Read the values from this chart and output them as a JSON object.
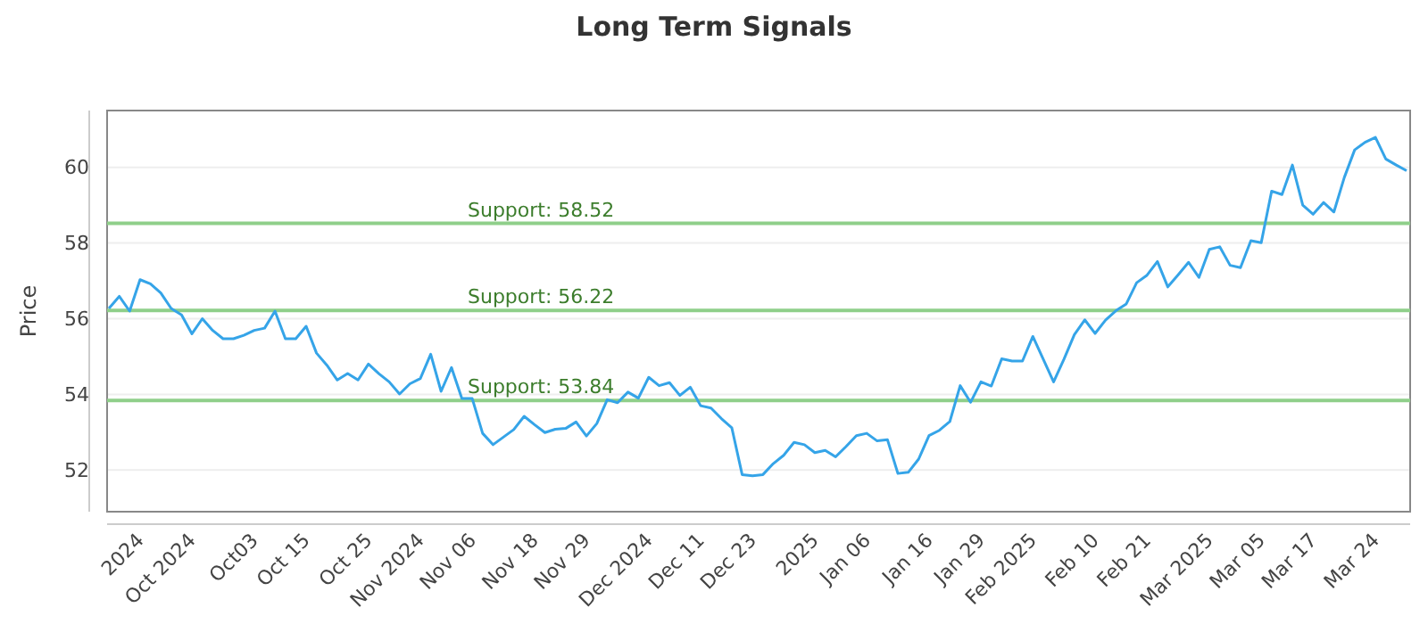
{
  "chart_data": {
    "type": "line",
    "title": "Long Term Signals",
    "ylabel": "Price",
    "categories": [
      null,
      null,
      null,
      "2024",
      null,
      null,
      null,
      null,
      "Oct 2024",
      null,
      null,
      null,
      null,
      null,
      "Oct03",
      null,
      null,
      null,
      null,
      "Oct 15",
      null,
      null,
      null,
      null,
      null,
      "Oct 25",
      null,
      null,
      null,
      null,
      "Nov 2024",
      null,
      null,
      null,
      null,
      "Nov 06",
      null,
      null,
      null,
      null,
      null,
      "Nov 18",
      null,
      null,
      null,
      null,
      "Nov 29",
      null,
      null,
      null,
      null,
      null,
      "Dec 2024",
      null,
      null,
      null,
      null,
      "Dec 11",
      null,
      null,
      null,
      null,
      "Dec 23",
      null,
      null,
      null,
      null,
      null,
      "2025",
      null,
      null,
      null,
      null,
      "Jan 06",
      null,
      null,
      null,
      null,
      null,
      "Jan 16",
      null,
      null,
      null,
      null,
      "Jan 29",
      null,
      null,
      null,
      null,
      "Feb 2025",
      null,
      null,
      null,
      null,
      null,
      "Feb 10",
      null,
      null,
      null,
      null,
      "Feb 21",
      null,
      null,
      null,
      null,
      null,
      "Mar 2025",
      null,
      null,
      null,
      null,
      "Mar 05",
      null,
      null,
      null,
      null,
      "Mar 17",
      null,
      null,
      null,
      null,
      null,
      "Mar 24",
      null,
      null,
      null
    ],
    "series": [
      {
        "color": "#35a4e8",
        "values": [
          56.27,
          56.59,
          56.2,
          57.03,
          56.92,
          56.68,
          56.27,
          56.1,
          55.6,
          56.0,
          55.69,
          55.47,
          55.47,
          55.56,
          55.69,
          55.75,
          56.2,
          55.47,
          55.47,
          55.8,
          55.09,
          54.77,
          54.38,
          54.55,
          54.38,
          54.8,
          54.55,
          54.33,
          54.01,
          54.28,
          54.42,
          55.06,
          54.08,
          54.71,
          53.89,
          53.89,
          52.97,
          52.67,
          52.87,
          53.07,
          53.42,
          53.2,
          52.99,
          53.08,
          53.1,
          53.27,
          52.9,
          53.23,
          53.86,
          53.78,
          54.06,
          53.9,
          54.45,
          54.23,
          54.31,
          53.97,
          54.19,
          53.7,
          53.64,
          53.36,
          53.12,
          51.88,
          51.85,
          51.88,
          52.17,
          52.39,
          52.73,
          52.67,
          52.46,
          52.52,
          52.35,
          52.62,
          52.91,
          52.97,
          52.77,
          52.8,
          51.91,
          51.94,
          52.29,
          52.91,
          53.05,
          53.28,
          54.23,
          53.79,
          54.33,
          54.22,
          54.94,
          54.88,
          54.88,
          55.53,
          54.93,
          54.33,
          54.93,
          55.58,
          55.97,
          55.61,
          55.96,
          56.21,
          56.39,
          56.95,
          57.15,
          57.51,
          56.84,
          57.16,
          57.49,
          57.09,
          57.83,
          57.9,
          57.41,
          57.35,
          58.06,
          58.01,
          59.37,
          59.28,
          60.06,
          59.0,
          58.76,
          59.07,
          58.82,
          59.73,
          60.46,
          60.66,
          60.79,
          60.22,
          60.06,
          59.91
        ]
      }
    ],
    "ylim": [
      50.9,
      61.5
    ],
    "yticks": [
      52,
      54,
      56,
      58,
      60
    ],
    "grid": "y",
    "line_style": "solid",
    "marker": "none",
    "ref_lines": [
      {
        "axis": "y",
        "value": 58.52,
        "label": "Support: 58.52",
        "color": "#8fcf8a"
      },
      {
        "axis": "y",
        "value": 56.22,
        "label": "Support: 56.22",
        "color": "#8fcf8a"
      },
      {
        "axis": "y",
        "value": 53.84,
        "label": "Support: 53.84",
        "color": "#8fcf8a"
      }
    ]
  }
}
